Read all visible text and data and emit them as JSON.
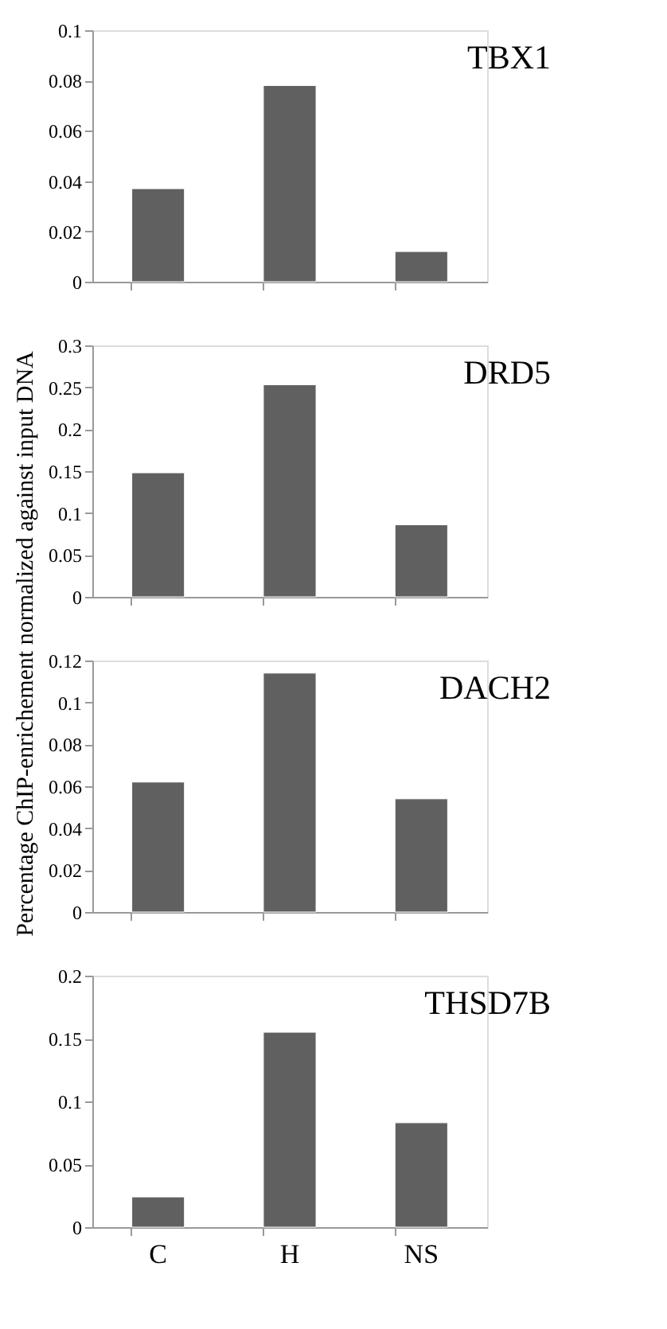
{
  "chart_data": [
    {
      "type": "bar",
      "title": "TBX1",
      "ylabel": "Percentage ChIP-enrichement normalized against input DNA",
      "categories": [
        null,
        null,
        null
      ],
      "values": [
        0.037,
        0.078,
        0.012
      ],
      "color": "#606060",
      "ylim": [
        0,
        0.1
      ],
      "yticks": [
        0,
        0.02,
        0.04,
        0.06,
        0.08,
        0.1
      ],
      "grid": false
    },
    {
      "type": "bar",
      "title": "DRD5",
      "categories": [
        null,
        null,
        null
      ],
      "values": [
        0.148,
        0.253,
        0.086
      ],
      "color": "#606060",
      "ylim": [
        0,
        0.3
      ],
      "yticks": [
        0,
        0.05,
        0.1,
        0.15,
        0.2,
        0.25,
        0.3
      ],
      "grid": false
    },
    {
      "type": "bar",
      "title": "DACH2",
      "categories": [
        null,
        null,
        null
      ],
      "values": [
        0.062,
        0.114,
        0.054
      ],
      "color": "#606060",
      "ylim": [
        0,
        0.12
      ],
      "yticks": [
        0,
        0.02,
        0.04,
        0.06,
        0.08,
        0.1,
        0.12
      ],
      "grid": false
    },
    {
      "type": "bar",
      "title": "THSD7B",
      "categories": [
        "C",
        "H",
        "NS"
      ],
      "values": [
        0.024,
        0.155,
        0.083
      ],
      "color": "#606060",
      "ylim": [
        0,
        0.2
      ],
      "yticks": [
        0,
        0.05,
        0.1,
        0.15,
        0.2
      ],
      "grid": false
    }
  ]
}
